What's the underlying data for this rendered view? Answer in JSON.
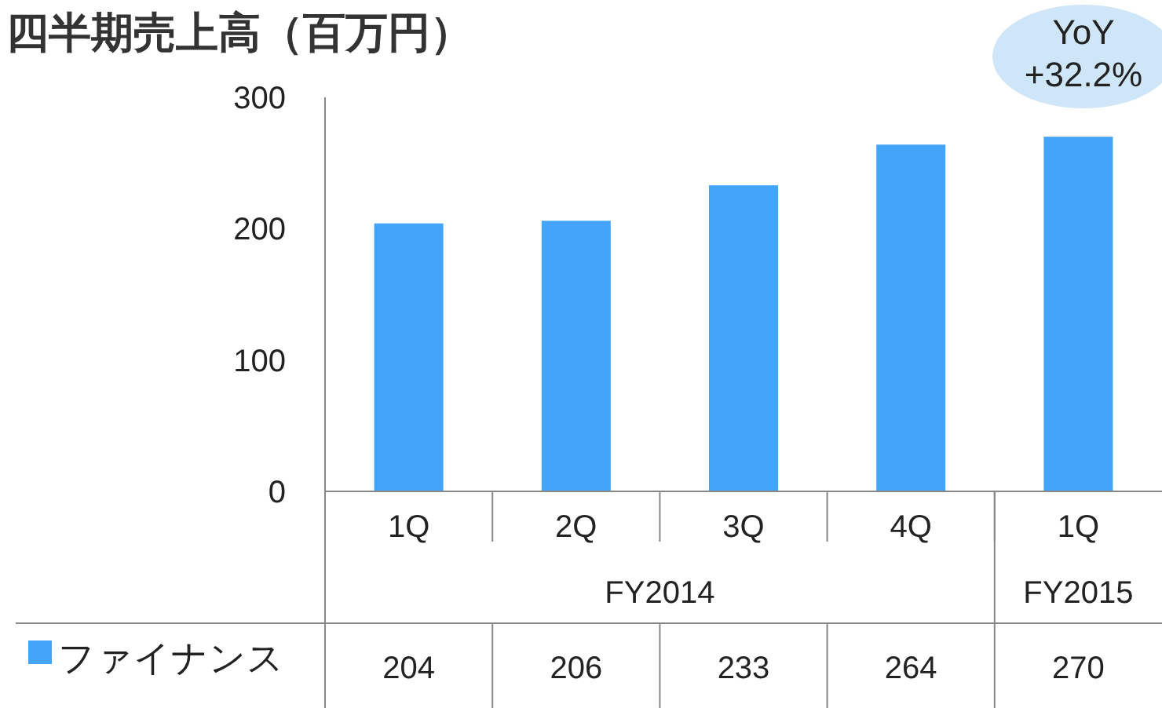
{
  "chart_data": {
    "type": "bar",
    "title": "四半期売上高（百万円）",
    "categories": [
      "1Q",
      "2Q",
      "3Q",
      "4Q",
      "1Q"
    ],
    "series": [
      {
        "name": "ファイナンス",
        "color": "#42a5fa",
        "values": [
          204,
          206,
          233,
          264,
          270
        ]
      }
    ],
    "ylim": [
      0,
      300
    ],
    "yticks": [
      0,
      100,
      200,
      300
    ],
    "data_labels": true,
    "legend": "bottom left",
    "annotations": [
      "YoY +32.2%",
      "FY2014",
      "FY2015"
    ]
  }
}
